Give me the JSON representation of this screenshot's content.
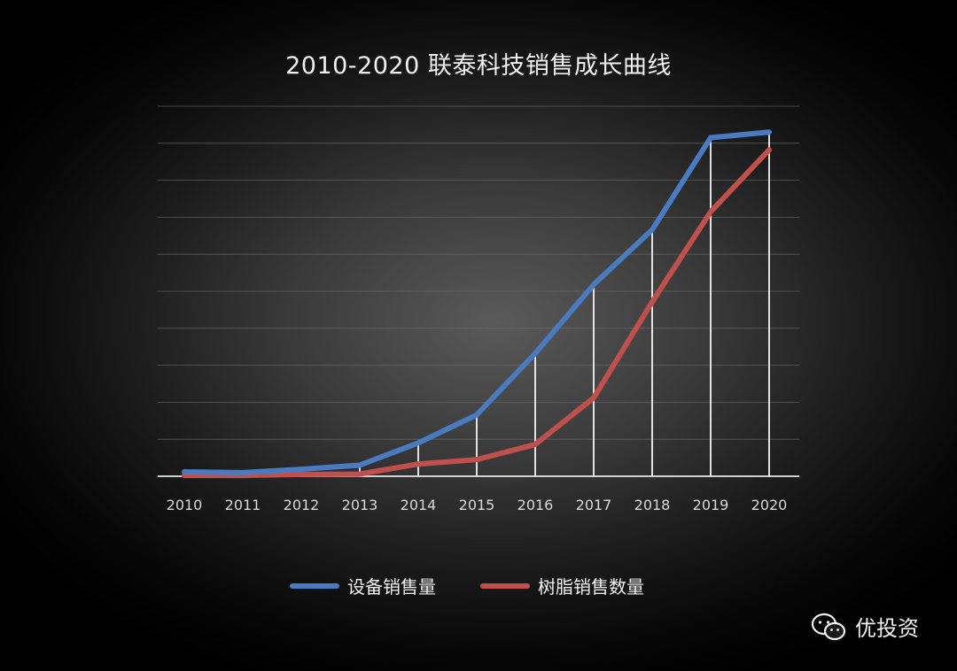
{
  "chart_data": {
    "type": "line",
    "title": "2010-2020 联泰科技销售成长曲线",
    "categories": [
      "2010",
      "2011",
      "2012",
      "2013",
      "2014",
      "2015",
      "2016",
      "2017",
      "2018",
      "2019",
      "2020"
    ],
    "ylim": [
      0,
      100
    ],
    "grid": true,
    "legend_position": "bottom",
    "series": [
      {
        "name": "设备销售量",
        "color": "#4a7bc0",
        "values": [
          1.2,
          1.0,
          1.9,
          3.0,
          9.0,
          16.6,
          33.2,
          51.8,
          66.6,
          91.5,
          93.0
        ]
      },
      {
        "name": "树脂销售数量",
        "color": "#c0504d",
        "values": [
          0.2,
          0.2,
          0.5,
          0.6,
          3.3,
          4.5,
          8.6,
          21.2,
          47.1,
          71.5,
          88.2
        ]
      }
    ]
  },
  "watermark": {
    "text": "优投资",
    "icon": "wechat-icon"
  }
}
